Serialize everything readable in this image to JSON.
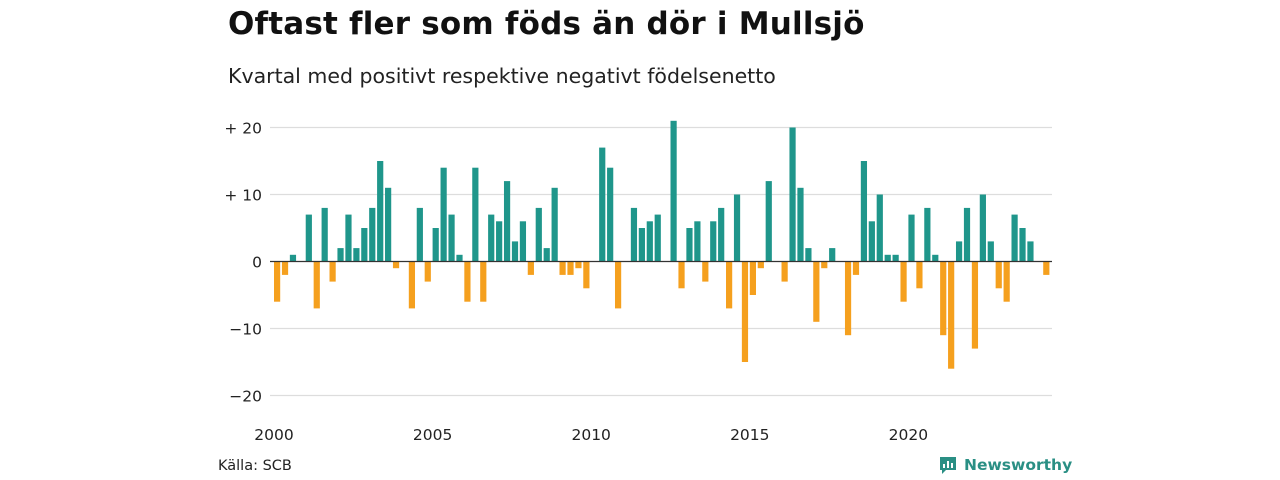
{
  "title": "Oftast fler som föds än dör i Mullsjö",
  "subtitle": "Kvartal med positivt respektive negativt födelsenetto",
  "source": "Källa: SCB",
  "brand": {
    "name": "Newsworthy",
    "icon": "newsworthy-logo-icon",
    "color": "#2a8f84"
  },
  "colors": {
    "positive": "#1f968b",
    "negative": "#f5a01e",
    "grid": "#dddddd",
    "zero": "#333333"
  },
  "chart_data": {
    "type": "bar",
    "xlabel": "",
    "ylabel": "",
    "ylim": [
      -22,
      22
    ],
    "yticks": [
      20,
      10,
      0,
      -10,
      -20
    ],
    "ytick_labels": [
      "+ 20",
      "+ 10",
      "0",
      "−10",
      "−20"
    ],
    "xticks": [
      "2000",
      "2005",
      "2010",
      "2015",
      "2020"
    ],
    "start_year": 2000,
    "grid": true,
    "values": [
      -6,
      -2,
      1,
      0,
      7,
      -7,
      8,
      -3,
      2,
      7,
      2,
      5,
      8,
      15,
      11,
      -1,
      0,
      -7,
      8,
      -3,
      5,
      14,
      7,
      1,
      -6,
      14,
      -6,
      7,
      6,
      12,
      3,
      6,
      -2,
      8,
      2,
      11,
      -2,
      -2,
      -1,
      -4,
      0,
      17,
      14,
      -7,
      0,
      8,
      5,
      6,
      7,
      0,
      21,
      -4,
      5,
      6,
      -3,
      6,
      8,
      -7,
      10,
      -15,
      -5,
      -1,
      12,
      0,
      -3,
      20,
      11,
      2,
      -9,
      -1,
      2,
      0,
      -11,
      -2,
      15,
      6,
      10,
      1,
      1,
      -6,
      7,
      -4,
      8,
      1,
      -11,
      -16,
      3,
      8,
      -13,
      10,
      3,
      -4,
      -6,
      7,
      5,
      3,
      0,
      -2
    ]
  }
}
